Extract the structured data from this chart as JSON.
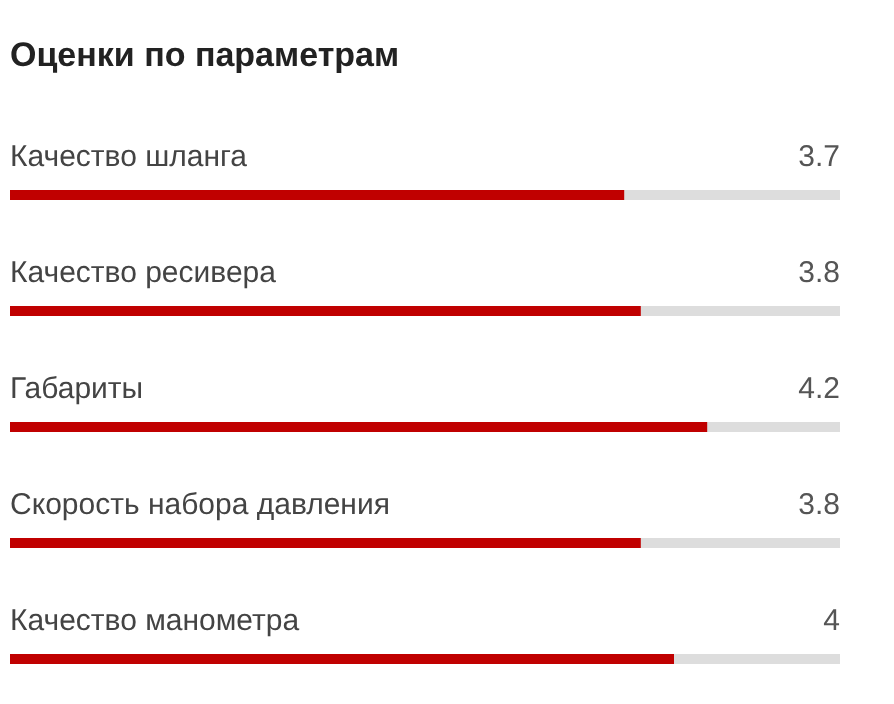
{
  "chart_data": {
    "type": "bar",
    "orientation": "horizontal",
    "title": "Оценки по параметрам",
    "categories": [
      "Качество шланга",
      "Качество ресивера",
      "Габариты",
      "Скорость набора давления",
      "Качество манометра"
    ],
    "values": [
      3.7,
      3.8,
      4.2,
      3.8,
      4
    ],
    "color": "#c00000",
    "xlim": [
      0,
      5
    ],
    "data_labels": true
  }
}
